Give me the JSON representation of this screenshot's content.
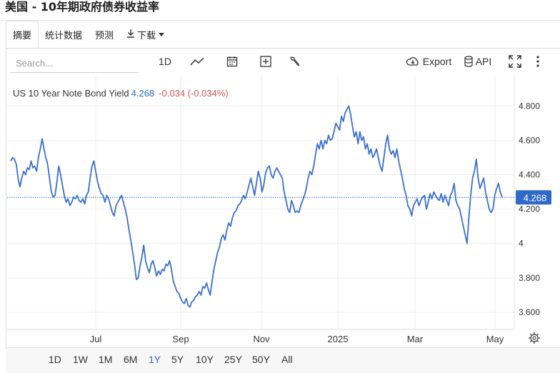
{
  "page": {
    "title": "美国 - 10年期政府债券收益率"
  },
  "tabs": [
    {
      "label": "摘要",
      "active": true
    },
    {
      "label": "统计数据",
      "active": false
    },
    {
      "label": "预测",
      "active": false
    },
    {
      "label": "下载",
      "active": false
    }
  ],
  "toolbar": {
    "search_placeholder": "Search...",
    "interval_label": "1D",
    "export_label": "Export",
    "api_label": "API",
    "icons": [
      "line-chart-icon",
      "calendar-icon",
      "plus-box-icon",
      "wrench-icon",
      "cloud-download-icon",
      "database-icon",
      "fullscreen-icon",
      "more-icon"
    ]
  },
  "legend": {
    "name": "US 10 Year Note Bond Yield",
    "value": "4.268",
    "change": "-0.034 (-0.034%)"
  },
  "chart_data": {
    "type": "line",
    "ylim": [
      3.5,
      4.98
    ],
    "y_ticks": [
      "4.800",
      "4.600",
      "4.400",
      "4.200",
      "4",
      "3.800",
      "3.600"
    ],
    "y_tick_values": [
      4.8,
      4.6,
      4.4,
      4.2,
      4.0,
      3.8,
      3.6
    ],
    "x_tick_labels": [
      "Jul",
      "Sep",
      "Nov",
      "2025",
      "Mar",
      "May"
    ],
    "current_value": 4.268,
    "current_label": "4.268",
    "colors": {
      "line": "#3a6fd0",
      "current_badge": "#2f6ac8",
      "change_negative": "#d9534f"
    },
    "series": [
      {
        "values": [
          4.48,
          4.5,
          4.49,
          4.46,
          4.38,
          4.33,
          4.38,
          4.42,
          4.4,
          4.44,
          4.43,
          4.48,
          4.44,
          4.45,
          4.42,
          4.5,
          4.55,
          4.61,
          4.55,
          4.5,
          4.46,
          4.38,
          4.3,
          4.27,
          4.28,
          4.36,
          4.45,
          4.4,
          4.34,
          4.28,
          4.24,
          4.26,
          4.22,
          4.24,
          4.27,
          4.26,
          4.28,
          4.25,
          4.24,
          4.26,
          4.23,
          4.28,
          4.3,
          4.38,
          4.45,
          4.48,
          4.42,
          4.36,
          4.32,
          4.29,
          4.28,
          4.24,
          4.28,
          4.26,
          4.22,
          4.18,
          4.16,
          4.22,
          4.24,
          4.26,
          4.28,
          4.24,
          4.2,
          4.15,
          4.08,
          4.02,
          3.95,
          3.88,
          3.79,
          3.8,
          3.87,
          3.92,
          3.99,
          3.9,
          3.86,
          3.83,
          3.88,
          3.9,
          3.86,
          3.81,
          3.84,
          3.82,
          3.85,
          3.84,
          3.88,
          3.87,
          3.9,
          3.85,
          3.78,
          3.75,
          3.72,
          3.71,
          3.68,
          3.66,
          3.65,
          3.68,
          3.64,
          3.63,
          3.66,
          3.67,
          3.69,
          3.7,
          3.72,
          3.7,
          3.75,
          3.74,
          3.77,
          3.73,
          3.7,
          3.78,
          3.85,
          3.9,
          3.95,
          3.98,
          4.03,
          4.05,
          4.02,
          4.08,
          4.12,
          4.1,
          4.15,
          4.18,
          4.19,
          4.22,
          4.23,
          4.25,
          4.28,
          4.26,
          4.3,
          4.34,
          4.38,
          4.33,
          4.28,
          4.35,
          4.42,
          4.38,
          4.3,
          4.34,
          4.41,
          4.44,
          4.45,
          4.4,
          4.38,
          4.42,
          4.44,
          4.42,
          4.4,
          4.38,
          4.3,
          4.25,
          4.2,
          4.18,
          4.25,
          4.22,
          4.18,
          4.19,
          4.18,
          4.22,
          4.25,
          4.28,
          4.32,
          4.38,
          4.42,
          4.4,
          4.45,
          4.52,
          4.58,
          4.55,
          4.6,
          4.55,
          4.6,
          4.58,
          4.63,
          4.6,
          4.61,
          4.65,
          4.7,
          4.68,
          4.66,
          4.74,
          4.71,
          4.76,
          4.78,
          4.8,
          4.75,
          4.68,
          4.62,
          4.65,
          4.58,
          4.65,
          4.6,
          4.62,
          4.55,
          4.58,
          4.52,
          4.55,
          4.5,
          4.52,
          4.55,
          4.5,
          4.45,
          4.42,
          4.5,
          4.58,
          4.63,
          4.55,
          4.52,
          4.54,
          4.5,
          4.55,
          4.48,
          4.43,
          4.38,
          4.32,
          4.28,
          4.22,
          4.2,
          4.16,
          4.22,
          4.24,
          4.26,
          4.22,
          4.25,
          4.27,
          4.28,
          4.2,
          4.24,
          4.29,
          4.26,
          4.3,
          4.28,
          4.26,
          4.25,
          4.29,
          4.24,
          4.28,
          4.25,
          4.22,
          4.28,
          4.3,
          4.35,
          4.25,
          4.22,
          4.2,
          4.15,
          4.1,
          4.05,
          4.0,
          4.15,
          4.28,
          4.38,
          4.42,
          4.49,
          4.38,
          4.32,
          4.35,
          4.38,
          4.3,
          4.25,
          4.2,
          4.18,
          4.2,
          4.28,
          4.32,
          4.35,
          4.3,
          4.27
        ]
      }
    ]
  },
  "range_options": [
    {
      "label": "1D",
      "active": false
    },
    {
      "label": "1W",
      "active": false
    },
    {
      "label": "1M",
      "active": false
    },
    {
      "label": "6M",
      "active": false
    },
    {
      "label": "1Y",
      "active": true
    },
    {
      "label": "5Y",
      "active": false
    },
    {
      "label": "10Y",
      "active": false
    },
    {
      "label": "25Y",
      "active": false
    },
    {
      "label": "50Y",
      "active": false
    },
    {
      "label": "All",
      "active": false
    }
  ]
}
